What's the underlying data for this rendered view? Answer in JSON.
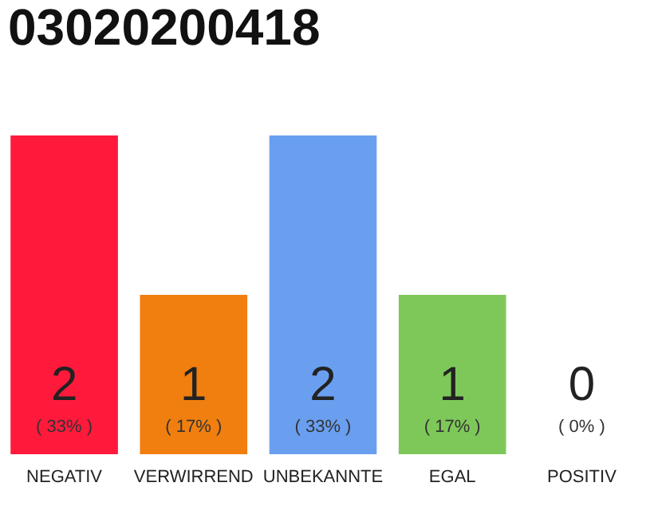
{
  "chart_data": {
    "type": "bar",
    "title": "03020200418",
    "categories": [
      "NEGATIV",
      "VERWIRREND",
      "UNBEKANNTE",
      "EGAL",
      "POSITIV"
    ],
    "values": [
      2,
      1,
      2,
      1,
      0
    ],
    "colors": [
      "#ff1a3c",
      "#f07f0f",
      "#6a9ff0",
      "#7ec85a",
      "#cccccc"
    ],
    "ylim": [
      0,
      2
    ],
    "tick_labels": "x",
    "value_labels": [
      "2",
      "1",
      "2",
      "1",
      "0"
    ],
    "annotations": [
      "( 33% )",
      "( 17% )",
      "( 33% )",
      "( 17% )",
      "( 0% )"
    ]
  }
}
